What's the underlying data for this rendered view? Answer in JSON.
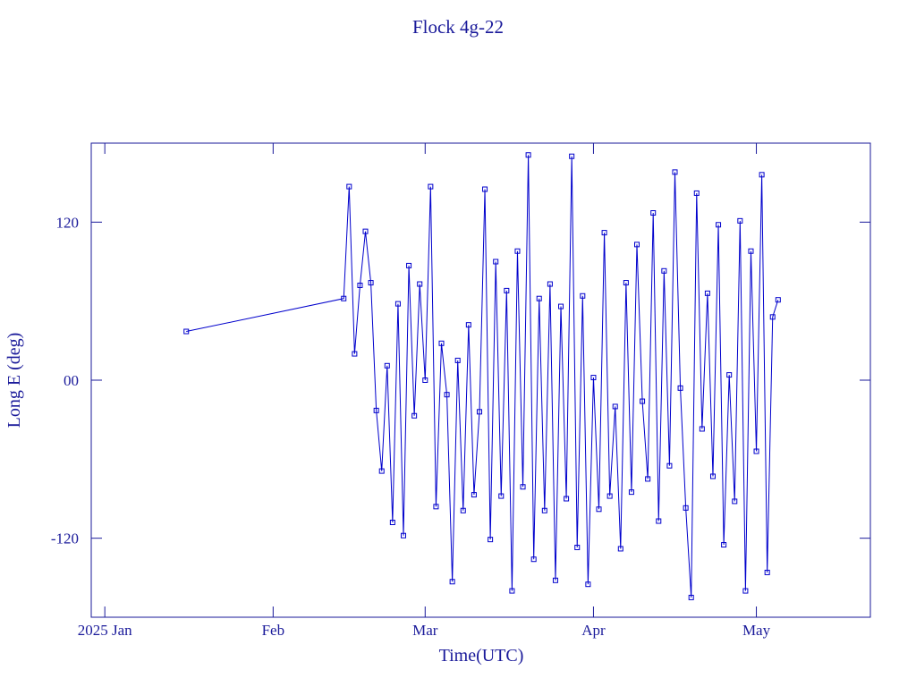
{
  "chart_data": {
    "type": "line",
    "title": "Flock 4g-22",
    "xlabel": "Time(UTC)",
    "ylabel": "Long E (deg)",
    "x": [
      15,
      44,
      45,
      46,
      47,
      48,
      49,
      50,
      51,
      52,
      53,
      54,
      55,
      56,
      57,
      58,
      59,
      60,
      61,
      62,
      63,
      64,
      65,
      66,
      67,
      68,
      69,
      70,
      71,
      72,
      73,
      74,
      75,
      76,
      77,
      78,
      79,
      80,
      81,
      82,
      83,
      84,
      85,
      86,
      87,
      88,
      89,
      90,
      91,
      92,
      93,
      94,
      95,
      96,
      97,
      98,
      99,
      100,
      101,
      102,
      103,
      104,
      105,
      106,
      107,
      108,
      109,
      110,
      111,
      112,
      113,
      114,
      115,
      116,
      117,
      118,
      119,
      120,
      121,
      122,
      123,
      124
    ],
    "series": [
      {
        "color": "#0000cc",
        "values": [
          37,
          62,
          147,
          20,
          72,
          113,
          74,
          -23,
          -69,
          11,
          -108,
          58,
          -118,
          87,
          -27,
          73,
          0,
          147,
          -96,
          28,
          -11,
          -153,
          15,
          -99,
          42,
          -87,
          -24,
          145,
          -121,
          90,
          -88,
          68,
          -160,
          98,
          -81,
          171,
          -136,
          62,
          -99,
          73,
          -152,
          56,
          -90,
          170,
          -127,
          64,
          -155,
          2,
          -98,
          112,
          -88,
          -20,
          -128,
          74,
          -85,
          103,
          -16,
          -75,
          127,
          -107,
          83,
          -65,
          158,
          -6,
          -97,
          -165,
          142,
          -37,
          66,
          -73,
          118,
          -125,
          4,
          -92,
          121,
          -160,
          98,
          -54,
          156,
          -146,
          48,
          61
        ]
      }
    ],
    "xlim": [
      -2.5,
      141
    ],
    "xticks": [
      {
        "value": 0,
        "label": "2025 Jan"
      },
      {
        "value": 31,
        "label": "Feb"
      },
      {
        "value": 59,
        "label": "Mar"
      },
      {
        "value": 90,
        "label": "Apr"
      },
      {
        "value": 120,
        "label": "May"
      }
    ],
    "ylim": [
      -180,
      180
    ],
    "yticks": [
      {
        "value": 120,
        "label": "120"
      },
      {
        "value": 0,
        "label": "00"
      },
      {
        "value": -120,
        "label": "-120"
      }
    ]
  }
}
